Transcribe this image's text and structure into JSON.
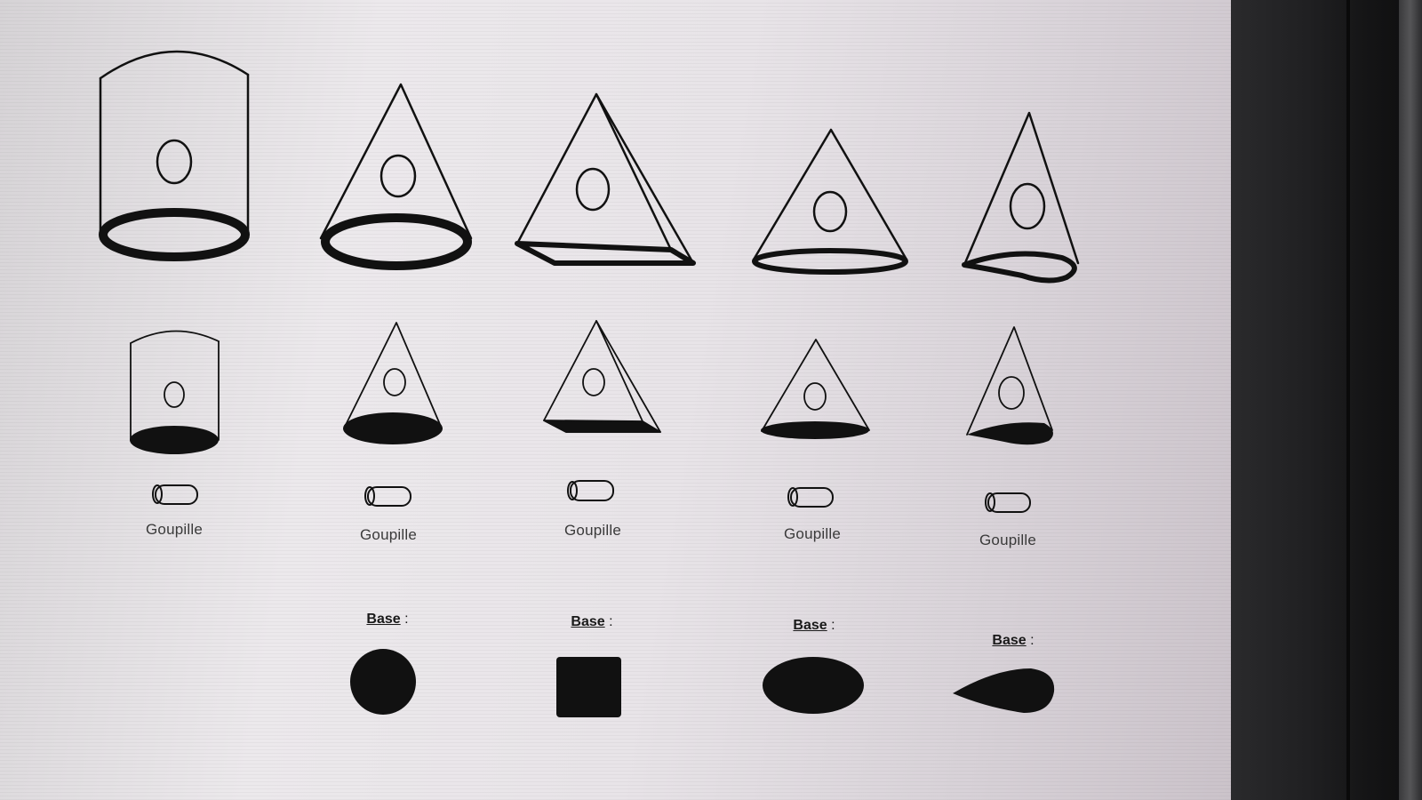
{
  "pin_label": "Goupille",
  "base_word": "Base",
  "base_colon": " :",
  "columns": [
    {
      "id": "cylinder",
      "large_shape": "cylinder-icon",
      "small_shape": "cylinder-icon",
      "base_shape": ""
    },
    {
      "id": "cone",
      "large_shape": "cone-icon",
      "small_shape": "cone-icon",
      "base_shape": "circle-base-icon"
    },
    {
      "id": "pyramid",
      "large_shape": "pyramid-icon",
      "small_shape": "pyramid-icon",
      "base_shape": "square-base-icon"
    },
    {
      "id": "elliptic-cone",
      "large_shape": "elliptic-cone-icon",
      "small_shape": "elliptic-cone-icon",
      "base_shape": "ellipse-base-icon"
    },
    {
      "id": "teardrop-cone",
      "large_shape": "teardrop-cone-icon",
      "small_shape": "teardrop-cone-icon",
      "base_shape": "teardrop-base-icon"
    }
  ],
  "colors": {
    "ink": "#111111",
    "screen": "#e8e4e8",
    "bezel": "#1d1d1f"
  }
}
